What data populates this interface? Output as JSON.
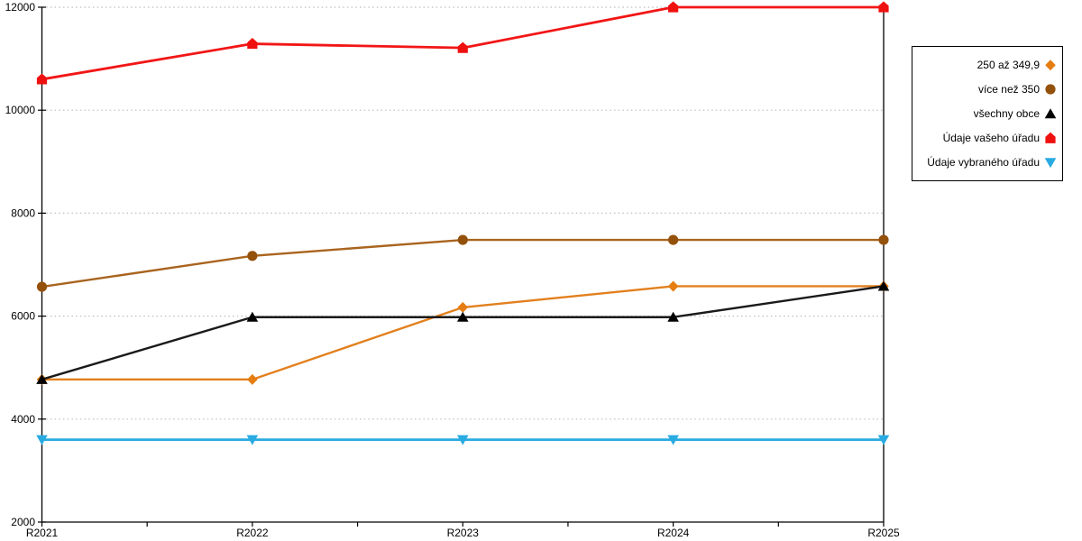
{
  "chart_data": {
    "type": "line",
    "title": "",
    "x": [
      "R2021",
      "R2022",
      "R2023",
      "R2024",
      "R2025"
    ],
    "series": [
      {
        "name": "250 až 349,9",
        "marker": "diamond",
        "color": "#E57D11",
        "line_color": "#E2801E",
        "values": [
          4770,
          4770,
          6170,
          6580,
          6580
        ]
      },
      {
        "name": "více než 350",
        "marker": "circle",
        "color": "#94510C",
        "line_color": "#A9641E",
        "values": [
          6570,
          7170,
          7480,
          7480,
          7480
        ]
      },
      {
        "name": "všechny obce",
        "marker": "triangle-up",
        "color": "#000000",
        "line_color": "#1A1A1A",
        "values": [
          4770,
          5980,
          5980,
          5980,
          6580
        ]
      },
      {
        "name": "Údaje vašeho úřadu",
        "marker": "pentagon",
        "color": "#EF1010",
        "line_color": "#F21616",
        "values": [
          10600,
          11290,
          11210,
          12000,
          12000
        ]
      },
      {
        "name": "Údaje vybraného úřadu",
        "marker": "triangle-down",
        "color": "#29ABE2",
        "line_color": "#29ABE2",
        "values": [
          3600,
          3600,
          3600,
          3600,
          3600
        ]
      }
    ],
    "ylim": [
      2000,
      12000
    ],
    "yticks": [
      2000,
      4000,
      6000,
      8000,
      10000,
      12000
    ],
    "ytick_labels": [
      "2000",
      "4000",
      "6000",
      "8000",
      "10000",
      "12000"
    ],
    "grid": "dotted horizontal",
    "legend_position": "right"
  },
  "colors": {
    "background": "#FFFFFF",
    "axis": "#000000",
    "grid": "#BDBDBD",
    "legend_border": "#000000"
  }
}
